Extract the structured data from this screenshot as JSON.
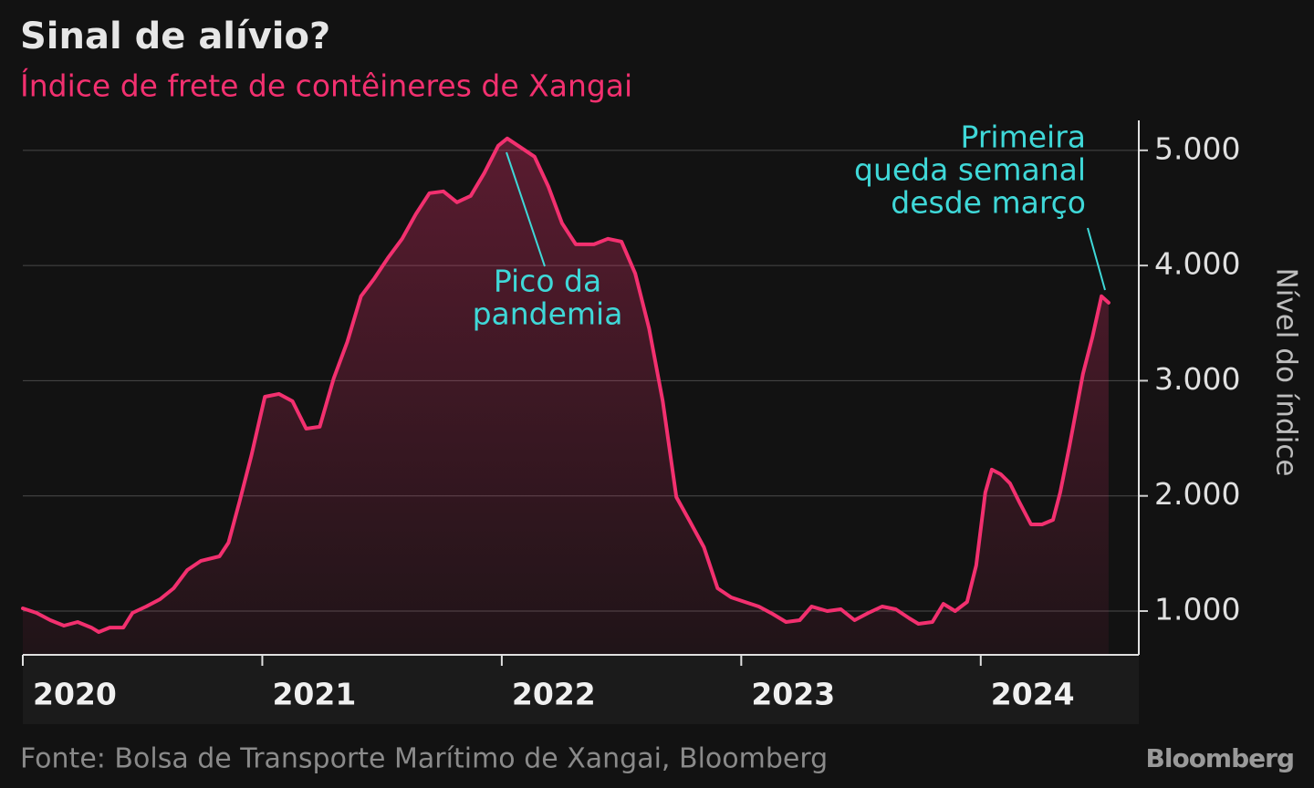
{
  "chart_data": {
    "type": "line",
    "title": "Sinal de alívio?",
    "subtitle": "Índice de frete de contêineres de Xangai",
    "y_label": "Nível do índice",
    "source": "Fonte: Bolsa de Transporte Marítimo de Xangai, Bloomberg",
    "logo": "Bloomberg",
    "color": "#f2306f",
    "grid": true,
    "xlim": [
      2020,
      2024.66
    ],
    "xticks": [
      2020,
      2021,
      2022,
      2023,
      2024
    ],
    "ylim": [
      620,
      5260
    ],
    "yticks": [
      {
        "value": 1000,
        "label": "1.000"
      },
      {
        "value": 2000,
        "label": "2.000"
      },
      {
        "value": 3000,
        "label": "3.000"
      },
      {
        "value": 4000,
        "label": "4.000"
      },
      {
        "value": 5000,
        "label": "5.000"
      }
    ],
    "annotations": [
      {
        "lines": [
          "Pico da",
          "pandemia"
        ]
      },
      {
        "lines": [
          "Primeira",
          "queda semanal",
          "desde março"
        ]
      }
    ],
    "x": [
      2020.0,
      2020.057,
      2020.115,
      2020.172,
      2020.229,
      2020.286,
      2020.317,
      2020.363,
      2020.42,
      2020.458,
      2020.515,
      2020.573,
      2020.63,
      2020.687,
      2020.744,
      2020.821,
      2020.859,
      2020.905,
      2020.954,
      2021.011,
      2021.069,
      2021.126,
      2021.183,
      2021.24,
      2021.298,
      2021.355,
      2021.412,
      2021.469,
      2021.527,
      2021.584,
      2021.641,
      2021.698,
      2021.756,
      2021.813,
      2021.87,
      2021.927,
      2021.985,
      2022.023,
      2022.08,
      2022.137,
      2022.195,
      2022.252,
      2022.309,
      2022.385,
      2022.443,
      2022.5,
      2022.557,
      2022.615,
      2022.672,
      2022.729,
      2022.786,
      2022.844,
      2022.901,
      2022.958,
      2023.015,
      2023.073,
      2023.13,
      2023.187,
      2023.244,
      2023.294,
      2023.359,
      2023.416,
      2023.473,
      2023.531,
      2023.588,
      2023.645,
      2023.702,
      2023.74,
      2023.798,
      2023.844,
      2023.893,
      2023.943,
      2023.981,
      2024.019,
      2024.046,
      2024.084,
      2024.122,
      2024.16,
      2024.21,
      2024.256,
      2024.302,
      2024.332,
      2024.37,
      2024.427,
      2024.466,
      2024.504,
      2024.534
    ],
    "values": [
      1024,
      984,
      921,
      873,
      905,
      857,
      818,
      857,
      857,
      984,
      1040,
      1103,
      1198,
      1356,
      1436,
      1475,
      1594,
      1950,
      2347,
      2861,
      2885,
      2822,
      2584,
      2600,
      3020,
      3337,
      3733,
      3891,
      4073,
      4232,
      4446,
      4628,
      4644,
      4549,
      4604,
      4802,
      5040,
      5103,
      5024,
      4945,
      4683,
      4366,
      4184,
      4184,
      4232,
      4208,
      3931,
      3455,
      2822,
      1990,
      1776,
      1554,
      1198,
      1119,
      1079,
      1040,
      976,
      905,
      921,
      1040,
      1000,
      1016,
      921,
      984,
      1040,
      1016,
      937,
      889,
      905,
      1063,
      1000,
      1079,
      1396,
      2030,
      2228,
      2188,
      2109,
      1950,
      1752,
      1752,
      1792,
      2030,
      2426,
      3059,
      3376,
      3733,
      3677
    ]
  }
}
